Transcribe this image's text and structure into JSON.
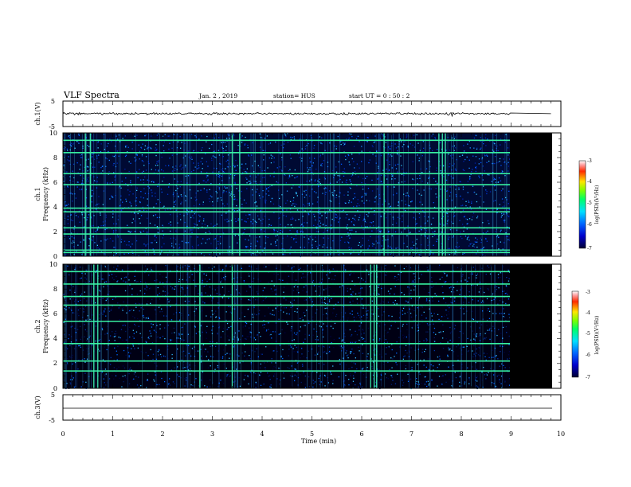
{
  "header": {
    "title": "VLF Spectra",
    "date": "Jan. 2 , 2019",
    "station": "station= HUS",
    "start": "start UT = 0 : 50 : 2"
  },
  "chart_data": [
    {
      "type": "line",
      "panel": "ch1-waveform",
      "ylabel": "ch.1(V)",
      "yticks": [
        "5",
        "-5"
      ],
      "ylim": [
        -5,
        5
      ],
      "xlim": [
        0,
        10
      ],
      "data_end_min": 9.0,
      "series": [
        {
          "x": [
            0,
            9,
            9.8
          ],
          "y": [
            0.05,
            0.05,
            0.05
          ]
        }
      ]
    },
    {
      "type": "heatmap",
      "panel": "ch1-spectrogram",
      "ylabel": "ch.1\nFrequency (kHz)",
      "yticks": [
        "0",
        "2",
        "4",
        "6",
        "8",
        "10"
      ],
      "ylim": [
        0,
        10
      ],
      "xlim": [
        0,
        10
      ],
      "data_end_min": 9.0,
      "colorbar": {
        "label": "log(PSD)(V²/Hz)",
        "ticks": [
          "-3",
          "-4",
          "-5",
          "-6",
          "-7"
        ],
        "range": [
          -7,
          -3
        ]
      },
      "horizontal_lines_khz": [
        9.4,
        8.4,
        6.7,
        5.8,
        3.9,
        3.6,
        2.3,
        1.8,
        0.5,
        0.3
      ],
      "vertical_events_min": [
        0.45,
        0.55,
        3.4,
        3.55,
        6.45,
        7.55,
        7.62,
        7.68
      ]
    },
    {
      "type": "heatmap",
      "panel": "ch2-spectrogram",
      "ylabel": "ch.2\nFrequency (kHz)",
      "yticks": [
        "0",
        "2",
        "4",
        "6",
        "8",
        "10"
      ],
      "ylim": [
        0,
        10
      ],
      "xlim": [
        0,
        10
      ],
      "data_end_min": 9.0,
      "colorbar": {
        "label": "log(PSD)(V²/Hz)",
        "ticks": [
          "-3",
          "-4",
          "-5",
          "-6",
          "-7"
        ],
        "range": [
          -7,
          -3
        ]
      },
      "horizontal_lines_khz": [
        9.4,
        8.4,
        7.4,
        6.7,
        5.4,
        3.6,
        2.2,
        1.4
      ],
      "vertical_events_min": [
        0.62,
        0.7,
        2.75,
        3.4,
        6.18,
        6.25,
        6.3
      ]
    },
    {
      "type": "line",
      "panel": "ch3-waveform",
      "ylabel": "ch.3(V)",
      "yticks": [
        "5",
        "-5"
      ],
      "ylim": [
        -5,
        5
      ],
      "xlim": [
        0,
        10
      ],
      "series": [
        {
          "x": [
            0,
            9.8
          ],
          "y": [
            0,
            0
          ]
        }
      ],
      "xlabel": "Time (min)",
      "xticks": [
        "0",
        "1",
        "2",
        "3",
        "4",
        "5",
        "6",
        "7",
        "8",
        "9",
        "10"
      ]
    }
  ]
}
